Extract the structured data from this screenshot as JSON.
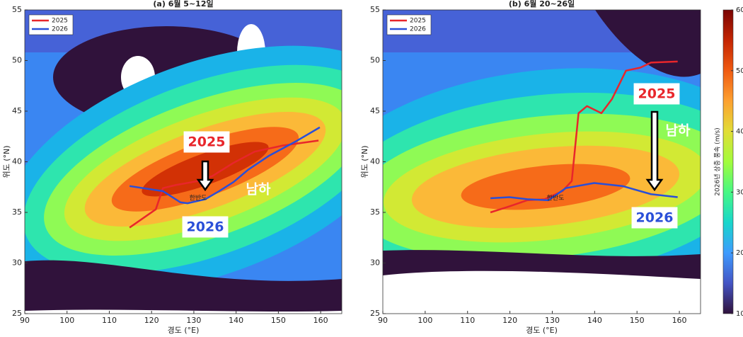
{
  "chart_data": [
    {
      "type": "line",
      "title": "(a) 6월 5~12일",
      "xlabel": "경도 (°E)",
      "ylabel": "위도 (°N)",
      "xlim": [
        90,
        165
      ],
      "ylim": [
        25,
        55
      ],
      "xticks": [
        90,
        100,
        110,
        120,
        130,
        140,
        150,
        160
      ],
      "yticks": [
        25,
        30,
        35,
        40,
        45,
        50,
        55
      ],
      "grid": false,
      "legend": "upper left",
      "series": [
        {
          "name": "2025",
          "color": "#e8262b",
          "x": [
            114.8,
            121,
            122.7,
            125.7,
            131,
            134.4,
            139.4,
            144.4,
            151,
            159.5
          ],
          "values": [
            33.5,
            35.3,
            37.4,
            37.7,
            38.1,
            38.6,
            39.9,
            41,
            41.6,
            42.1
          ]
        },
        {
          "name": "2026",
          "color": "#2a4fd8",
          "x": [
            114.8,
            122.7,
            126.8,
            128.5,
            132.7,
            136,
            139.4,
            142.8,
            147.8,
            154.5,
            159.8
          ],
          "values": [
            37.6,
            37.1,
            36,
            35.9,
            36.3,
            37.1,
            38,
            39.2,
            40.6,
            42.1,
            43.4
          ]
        }
      ],
      "annotations": [
        "2025",
        "2026",
        "남하",
        "한반도"
      ]
    },
    {
      "type": "line",
      "title": "(b) 6월 20~26일",
      "xlabel": "경도 (°E)",
      "ylabel": "위도 (°N)",
      "xlim": [
        90,
        165
      ],
      "ylim": [
        25,
        55
      ],
      "xticks": [
        90,
        100,
        110,
        120,
        130,
        140,
        150,
        160
      ],
      "yticks": [
        25,
        30,
        35,
        40,
        45,
        50,
        55
      ],
      "grid": false,
      "legend": "upper left",
      "series": [
        {
          "name": "2025",
          "color": "#e8262b",
          "x": [
            115.4,
            119.9,
            124.1,
            128.2,
            132.4,
            134.6,
            136.2,
            138.2,
            141.6,
            144.1,
            147.4,
            150.8,
            153.3,
            159.6
          ],
          "values": [
            35,
            35.6,
            36.2,
            36.3,
            37.1,
            38.1,
            44.8,
            45.5,
            44.8,
            46.2,
            49,
            49.3,
            49.8,
            49.9
          ]
        },
        {
          "name": "2026",
          "color": "#2a4fd8",
          "x": [
            115.4,
            119.9,
            124.1,
            129.1,
            133.2,
            139.9,
            146.6,
            153.3,
            159.6
          ],
          "values": [
            36.4,
            36.5,
            36.3,
            36.2,
            37.4,
            37.9,
            37.6,
            36.8,
            36.5
          ]
        }
      ],
      "annotations": [
        "2025",
        "2026",
        "남하",
        "한반도"
      ]
    }
  ],
  "colorbar": {
    "label": "2026년 상층 풍속 (m/s)",
    "lim": [
      10,
      60
    ],
    "ticks": [
      10,
      20,
      30,
      40,
      50,
      60
    ],
    "colormap": "turbo"
  }
}
